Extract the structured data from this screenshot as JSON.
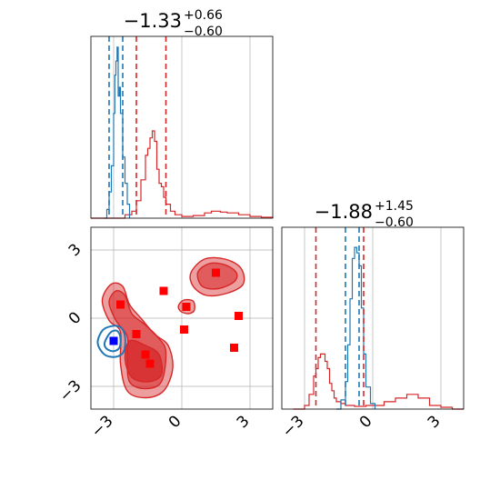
{
  "chart_data": {
    "type": "corner",
    "colors": {
      "blue": "#1f77b4",
      "red": "#d62728",
      "marker_red": "#ff0000",
      "marker_blue": "#0000ff",
      "grid": "#b0b0b0"
    },
    "grid": true,
    "range": [
      -4,
      4
    ],
    "ticks": {
      "values": [
        -3,
        0,
        3
      ],
      "labels": [
        "−3",
        "0",
        "3"
      ]
    },
    "titles": [
      {
        "main": "−1.33",
        "upper": "+0.66",
        "lower": "−0.60"
      },
      {
        "main": "−1.88",
        "upper": "+1.45",
        "lower": "−0.60"
      }
    ],
    "marginals": [
      {
        "param": "x",
        "blue": {
          "x": [
            -3.4,
            -3.3,
            -3.2,
            -3.1,
            -3.0,
            -2.95,
            -2.9,
            -2.85,
            -2.8,
            -2.75,
            -2.7,
            -2.6,
            -2.5,
            -2.4,
            -2.3
          ],
          "y": [
            0.0,
            0.05,
            0.15,
            0.3,
            0.6,
            0.82,
            0.9,
            0.98,
            0.7,
            0.75,
            0.6,
            0.35,
            0.2,
            0.08,
            0.0
          ]
        },
        "red": {
          "x": [
            -4.0,
            -3.0,
            -2.5,
            -2.2,
            -2.0,
            -1.8,
            -1.6,
            -1.5,
            -1.4,
            -1.3,
            -1.2,
            -1.1,
            -1.0,
            -0.9,
            -0.8,
            -0.7,
            -0.5,
            -0.3,
            0.0,
            0.5,
            1.0,
            1.3,
            1.7,
            2.0,
            2.5,
            3.0,
            3.5,
            4.0
          ],
          "y": [
            0.0,
            0.0,
            0.02,
            0.04,
            0.1,
            0.22,
            0.36,
            0.4,
            0.46,
            0.5,
            0.44,
            0.28,
            0.2,
            0.18,
            0.12,
            0.08,
            0.04,
            0.02,
            0.01,
            0.015,
            0.03,
            0.04,
            0.035,
            0.03,
            0.02,
            0.01,
            0.005,
            0.0
          ]
        },
        "blue_quantiles": [
          -3.2,
          -2.6
        ],
        "red_quantiles": [
          -2.0,
          -0.7
        ],
        "ymax": 1.0
      },
      {
        "param": "y",
        "blue": {
          "x": [
            -1.6,
            -1.4,
            -1.2,
            -1.1,
            -1.0,
            -0.9,
            -0.8,
            -0.7,
            -0.6,
            -0.5,
            -0.4,
            -0.3,
            -0.1,
            0.1
          ],
          "y": [
            0.0,
            0.05,
            0.15,
            0.35,
            0.6,
            0.82,
            0.88,
            0.85,
            0.78,
            0.55,
            0.3,
            0.12,
            0.03,
            0.0
          ]
        },
        "red": {
          "x": [
            -3.5,
            -3.0,
            -2.8,
            -2.6,
            -2.5,
            -2.4,
            -2.3,
            -2.2,
            -2.1,
            -2.0,
            -1.9,
            -1.8,
            -1.7,
            -1.6,
            -1.4,
            -1.2,
            -0.8,
            -0.3,
            0.5,
            1.0,
            1.5,
            2.0,
            2.5,
            3.0,
            3.5,
            4.0
          ],
          "y": [
            0.0,
            0.02,
            0.08,
            0.18,
            0.22,
            0.28,
            0.3,
            0.3,
            0.26,
            0.22,
            0.14,
            0.1,
            0.06,
            0.04,
            0.03,
            0.02,
            0.015,
            0.02,
            0.04,
            0.06,
            0.08,
            0.06,
            0.02,
            0.01,
            0.0,
            0.0
          ]
        },
        "blue_quantiles": [
          -1.2,
          -0.6
        ],
        "red_quantiles": [
          -2.5,
          -0.4
        ],
        "ymax": 0.95
      }
    ],
    "joint": {
      "blue_contours": [
        {
          "level": "inner",
          "points": [
            [
              -3.4,
              -1.1
            ],
            [
              -3.2,
              -0.7
            ],
            [
              -3.0,
              -0.55
            ],
            [
              -2.8,
              -0.6
            ],
            [
              -2.7,
              -0.9
            ],
            [
              -2.75,
              -1.3
            ],
            [
              -3.0,
              -1.45
            ],
            [
              -3.3,
              -1.35
            ]
          ]
        },
        {
          "level": "outer",
          "points": [
            [
              -3.7,
              -1.1
            ],
            [
              -3.5,
              -0.55
            ],
            [
              -3.1,
              -0.35
            ],
            [
              -2.7,
              -0.4
            ],
            [
              -2.5,
              -0.8
            ],
            [
              -2.55,
              -1.45
            ],
            [
              -2.9,
              -1.7
            ],
            [
              -3.4,
              -1.6
            ]
          ]
        }
      ],
      "red_contours": [
        {
          "level": "outer",
          "points": [
            [
              -3.5,
              0.8
            ],
            [
              -3.1,
              1.5
            ],
            [
              -2.6,
              1.4
            ],
            [
              -2.3,
              0.6
            ],
            [
              -1.8,
              0.0
            ],
            [
              -1.2,
              -0.7
            ],
            [
              -0.6,
              -1.2
            ],
            [
              -0.4,
              -2.2
            ],
            [
              -0.8,
              -3.2
            ],
            [
              -1.6,
              -3.5
            ],
            [
              -2.4,
              -3.2
            ],
            [
              -2.7,
              -2.0
            ],
            [
              -2.7,
              -0.6
            ],
            [
              -3.2,
              -0.1
            ]
          ]
        },
        {
          "level": "mid",
          "points": [
            [
              -3.2,
              0.7
            ],
            [
              -2.9,
              1.2
            ],
            [
              -2.5,
              1.0
            ],
            [
              -2.2,
              0.2
            ],
            [
              -1.6,
              -0.3
            ],
            [
              -1.0,
              -0.9
            ],
            [
              -0.7,
              -1.5
            ],
            [
              -0.9,
              -2.8
            ],
            [
              -1.6,
              -3.1
            ],
            [
              -2.3,
              -2.8
            ],
            [
              -2.4,
              -1.7
            ],
            [
              -2.4,
              -0.8
            ],
            [
              -2.9,
              -0.1
            ]
          ]
        },
        {
          "level": "inner",
          "points": [
            [
              -2.3,
              -1.0
            ],
            [
              -1.6,
              -1.2
            ],
            [
              -1.0,
              -1.6
            ],
            [
              -0.9,
              -2.5
            ],
            [
              -1.5,
              -2.8
            ],
            [
              -2.2,
              -2.6
            ],
            [
              -2.5,
              -1.8
            ]
          ]
        },
        {
          "level": "outer",
          "points": [
            [
              0.4,
              2.0
            ],
            [
              1.0,
              2.6
            ],
            [
              1.9,
              2.6
            ],
            [
              2.6,
              2.2
            ],
            [
              2.7,
              1.5
            ],
            [
              2.0,
              1.1
            ],
            [
              1.1,
              1.0
            ],
            [
              0.5,
              1.4
            ]
          ]
        },
        {
          "level": "mid",
          "points": [
            [
              0.7,
              2.0
            ],
            [
              1.2,
              2.4
            ],
            [
              1.9,
              2.35
            ],
            [
              2.4,
              2.0
            ],
            [
              2.3,
              1.6
            ],
            [
              1.6,
              1.3
            ],
            [
              0.9,
              1.4
            ]
          ]
        },
        {
          "level": "outer",
          "points": [
            [
              -0.15,
              0.55
            ],
            [
              0.1,
              0.8
            ],
            [
              0.5,
              0.75
            ],
            [
              0.55,
              0.35
            ],
            [
              0.3,
              0.2
            ],
            [
              -0.05,
              0.3
            ]
          ]
        }
      ],
      "red_markers": [
        {
          "x": 1.5,
          "y": 2.0
        },
        {
          "x": -0.8,
          "y": 1.2
        },
        {
          "x": -2.7,
          "y": 0.6
        },
        {
          "x": 0.2,
          "y": 0.5
        },
        {
          "x": 2.5,
          "y": 0.1
        },
        {
          "x": 0.1,
          "y": -0.5
        },
        {
          "x": -2.0,
          "y": -0.7
        },
        {
          "x": 2.3,
          "y": -1.3
        },
        {
          "x": -1.6,
          "y": -1.6
        },
        {
          "x": -1.4,
          "y": -2.0
        }
      ],
      "blue_markers": [
        {
          "x": -3.0,
          "y": -1.0
        }
      ]
    }
  }
}
